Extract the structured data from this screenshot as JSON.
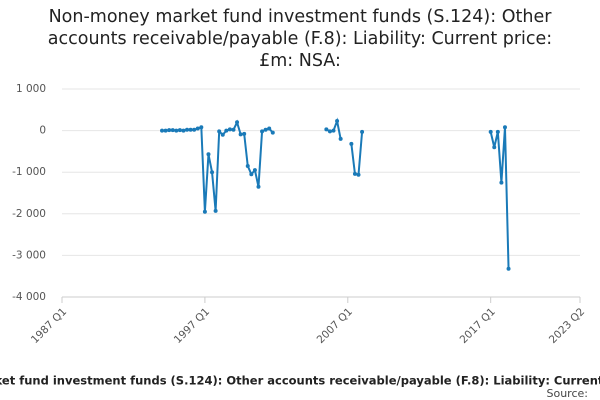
{
  "chart_data": {
    "type": "line",
    "title": "Non-money market fund investment funds (S.124): Other accounts receivable/payable (F.8): Liability: Current price: £m: NSA:",
    "source_label": "Source:",
    "categories": [
      "1987 Q1",
      null,
      null,
      null,
      null,
      null,
      null,
      null,
      null,
      null,
      null,
      null,
      null,
      null,
      null,
      null,
      null,
      null,
      null,
      null,
      null,
      null,
      null,
      null,
      null,
      null,
      null,
      null,
      null,
      null,
      null,
      null,
      null,
      null,
      null,
      null,
      null,
      null,
      null,
      null,
      "1997 Q1",
      null,
      null,
      null,
      null,
      null,
      null,
      null,
      null,
      null,
      null,
      null,
      null,
      null,
      null,
      null,
      null,
      null,
      null,
      null,
      null,
      null,
      null,
      null,
      null,
      null,
      null,
      null,
      null,
      null,
      null,
      null,
      null,
      null,
      null,
      null,
      null,
      null,
      null,
      null,
      "2007 Q1",
      null,
      null,
      null,
      null,
      null,
      null,
      null,
      null,
      null,
      null,
      null,
      null,
      null,
      null,
      null,
      null,
      null,
      null,
      null,
      null,
      null,
      null,
      null,
      null,
      null,
      null,
      null,
      null,
      null,
      null,
      null,
      null,
      null,
      null,
      null,
      null,
      null,
      null,
      null,
      "2017 Q1",
      null,
      null,
      null,
      null,
      null,
      null,
      null,
      null,
      null,
      null,
      null,
      null,
      null,
      null,
      null,
      null,
      null,
      null,
      null,
      null,
      null,
      null,
      null,
      null,
      "2023 Q2"
    ],
    "series": [
      {
        "name": "Liability",
        "color": "#1a7ab8",
        "values": [
          null,
          null,
          null,
          null,
          null,
          null,
          null,
          null,
          null,
          null,
          null,
          null,
          null,
          null,
          null,
          null,
          null,
          null,
          null,
          null,
          null,
          null,
          null,
          null,
          null,
          null,
          null,
          null,
          0,
          0,
          10,
          10,
          0,
          10,
          0,
          20,
          20,
          20,
          50,
          80,
          -1950,
          -570,
          -1000,
          -1930,
          -20,
          -100,
          0,
          30,
          20,
          200,
          -90,
          -80,
          -850,
          -1050,
          -950,
          -1350,
          -20,
          20,
          50,
          -50,
          null,
          null,
          null,
          null,
          null,
          null,
          null,
          null,
          null,
          null,
          null,
          null,
          null,
          null,
          30,
          -20,
          0,
          230,
          -200,
          null,
          null,
          -320,
          -1040,
          -1060,
          -30,
          null,
          null,
          null,
          null,
          null,
          null,
          null,
          null,
          null,
          null,
          null,
          null,
          null,
          null,
          null,
          null,
          null,
          null,
          null,
          null,
          null,
          null,
          null,
          null,
          null,
          null,
          null,
          null,
          null,
          null,
          null,
          null,
          null,
          null,
          null,
          -30,
          -400,
          -30,
          -1250,
          80,
          -3320,
          null,
          null,
          null,
          null,
          null,
          null,
          null,
          null,
          null,
          null,
          null,
          null,
          null,
          null,
          null,
          null,
          null,
          null,
          null,
          null
        ]
      }
    ],
    "ylim": [
      -4000,
      1000
    ],
    "yticks": [
      {
        "value": 1000,
        "label": "1 000"
      },
      0,
      {
        "value": -1000,
        "label": "-1 000"
      },
      {
        "value": -2000,
        "label": "-2 000"
      },
      {
        "value": -3000,
        "label": "-3 000"
      },
      {
        "value": -4000,
        "label": "-4 000"
      }
    ],
    "grid": true
  }
}
